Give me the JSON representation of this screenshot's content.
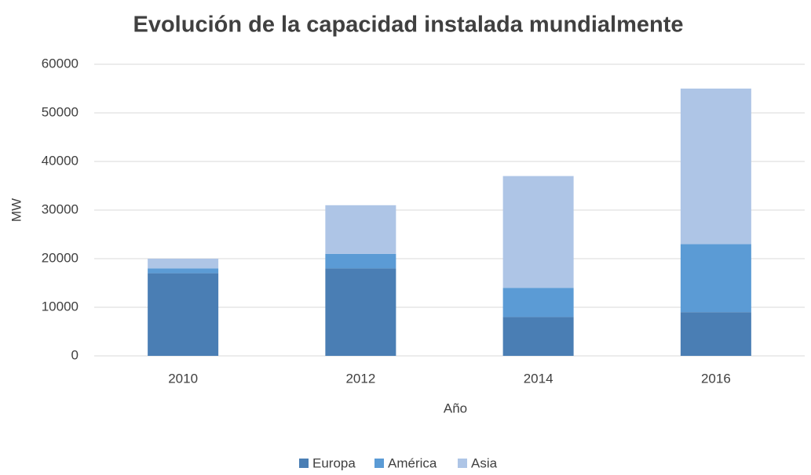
{
  "chart_data": {
    "type": "stacked_bar",
    "title": "Evolución de la capacidad instalada mundialmente",
    "x_label": "Año",
    "y_label": "MW",
    "categories": [
      "2010",
      "2012",
      "2014",
      "2016"
    ],
    "series": [
      {
        "name": "Europa",
        "color": "#4a7eb4",
        "values": [
          17000,
          18000,
          8000,
          9000
        ]
      },
      {
        "name": "América",
        "color": "#5b9bd5",
        "values": [
          1000,
          3000,
          6000,
          14000
        ]
      },
      {
        "name": "Asia",
        "color": "#aec5e6",
        "values": [
          2000,
          10000,
          23000,
          32000
        ]
      }
    ],
    "ylim": [
      0,
      60000
    ],
    "yticks": [
      0,
      10000,
      20000,
      30000,
      40000,
      50000,
      60000
    ],
    "grid": true,
    "legend": "bottom"
  }
}
